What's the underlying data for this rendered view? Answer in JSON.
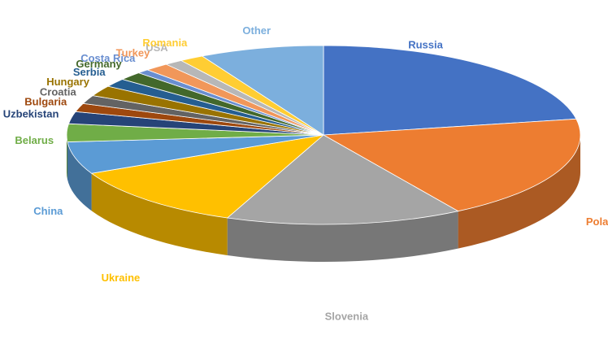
{
  "chart_data": {
    "type": "pie",
    "style": "3d",
    "legend": "none",
    "categories": [
      "Russia",
      "Poland",
      "Slovenia",
      "Ukraine",
      "China",
      "Belarus",
      "Uzbekistan",
      "Bulgaria",
      "Croatia",
      "Hungary",
      "Serbia",
      "Germany",
      "Costa Rica",
      "Turkey",
      "USA",
      "Romania",
      "Other"
    ],
    "values": [
      23.2,
      20.0,
      15.6,
      12.4,
      6.1,
      3.4,
      2.3,
      1.6,
      1.6,
      2.0,
      1.6,
      1.6,
      0.8,
      1.6,
      1.2,
      1.6,
      8.2
    ],
    "colors": [
      "#4472C4",
      "#ED7D31",
      "#A5A5A5",
      "#FFC000",
      "#5B9BD5",
      "#70AD47",
      "#264478",
      "#9E480E",
      "#636363",
      "#997300",
      "#255E91",
      "#43682B",
      "#698ED0",
      "#F1975A",
      "#B7B7B7",
      "#FFCD33",
      "#7CAFDD"
    ]
  }
}
